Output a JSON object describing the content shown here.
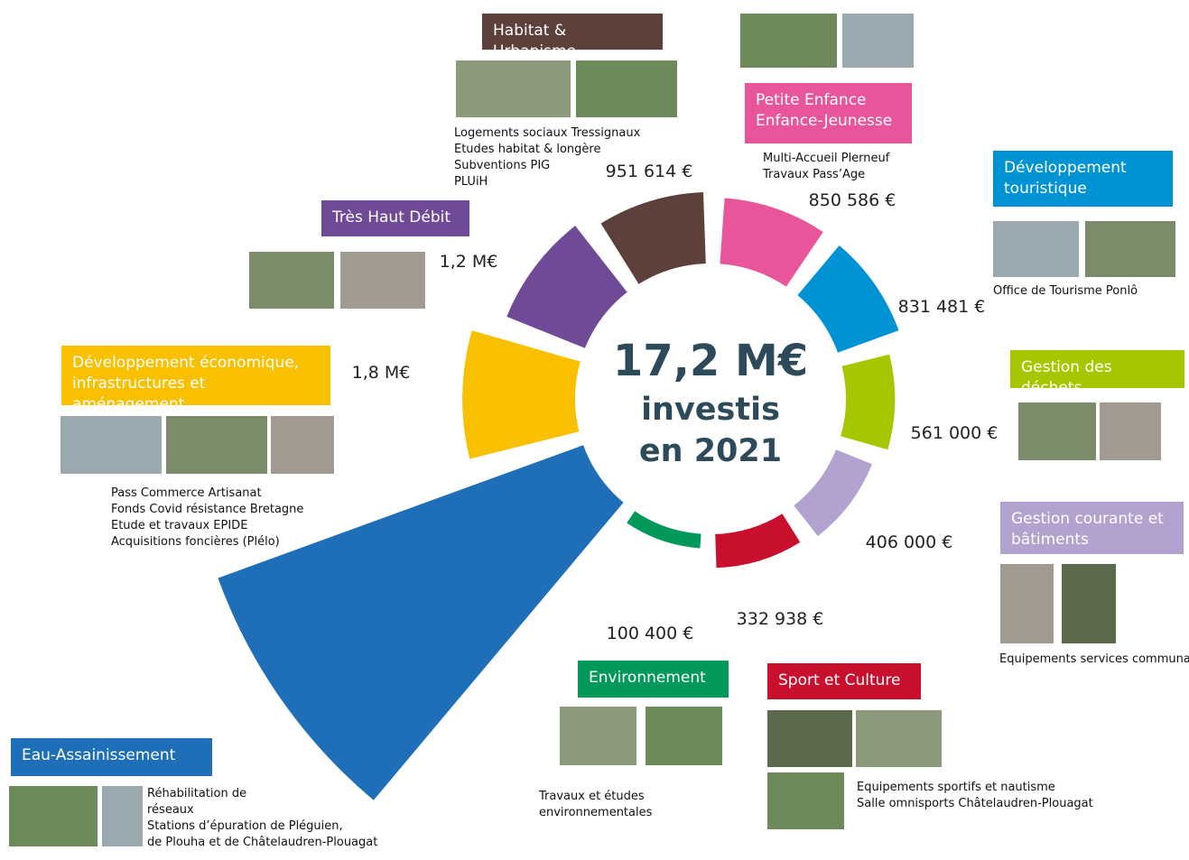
{
  "chart_data": {
    "type": "polar",
    "title": "17,2 M€",
    "subtitle": [
      "investis",
      "en 2021"
    ],
    "categories": [
      "Habitat & Urbanisme",
      "Petite Enfance\nEnfance-Jeunesse",
      "Développement\ntouristique",
      "Gestion des déchets",
      "Gestion courante et\nbâtiments",
      "Sport et Culture",
      "Environnement",
      "Eau-Assainissement",
      "Développement économique,\ninfrastructures et aménagement",
      "Très Haut Débit"
    ],
    "values": [
      951614,
      850586,
      831481,
      561000,
      406000,
      332938,
      100400,
      10170000,
      1800000,
      1200000
    ],
    "value_labels": [
      "951 614 €",
      "850 586 €",
      "831 481 €",
      "561 000 €",
      "406 000 €",
      "332 938 €",
      "100 400 €",
      null,
      "1,8 M€",
      "1,2 M€"
    ],
    "colors": [
      "#5c4039",
      "#e8559a",
      "#0093d3",
      "#a8c600",
      "#b2a2cf",
      "#c8102e",
      "#00995a",
      "#1e6fb8",
      "#f9c000",
      "#6f4a96"
    ],
    "descriptions": [
      [
        "Logements sociaux Tressignaux",
        "Etudes habitat & longère",
        "Subventions PIG",
        "PLUiH"
      ],
      [
        "Multi-Accueil Plerneuf",
        "Travaux Pass’Age"
      ],
      [
        "Office de Tourisme Ponlô"
      ],
      [],
      [
        "Equipements services communa"
      ],
      [
        "Equipements sportifs et nautisme",
        "Salle omnisports Châtelaudren-Plouagat"
      ],
      [
        "Travaux et études",
        "environnementales"
      ],
      [
        "Réhabilitation de",
        "réseaux",
        "Stations d’épuration de Pléguien,",
        "de Plouha et de Châtelaudren-Plouagat"
      ],
      [
        "Pass Commerce Artisanat",
        "Fonds Covid résistance Bretagne",
        "Etude et travaux EPIDE",
        "Acquisitions foncières (Plélo)"
      ],
      []
    ]
  }
}
